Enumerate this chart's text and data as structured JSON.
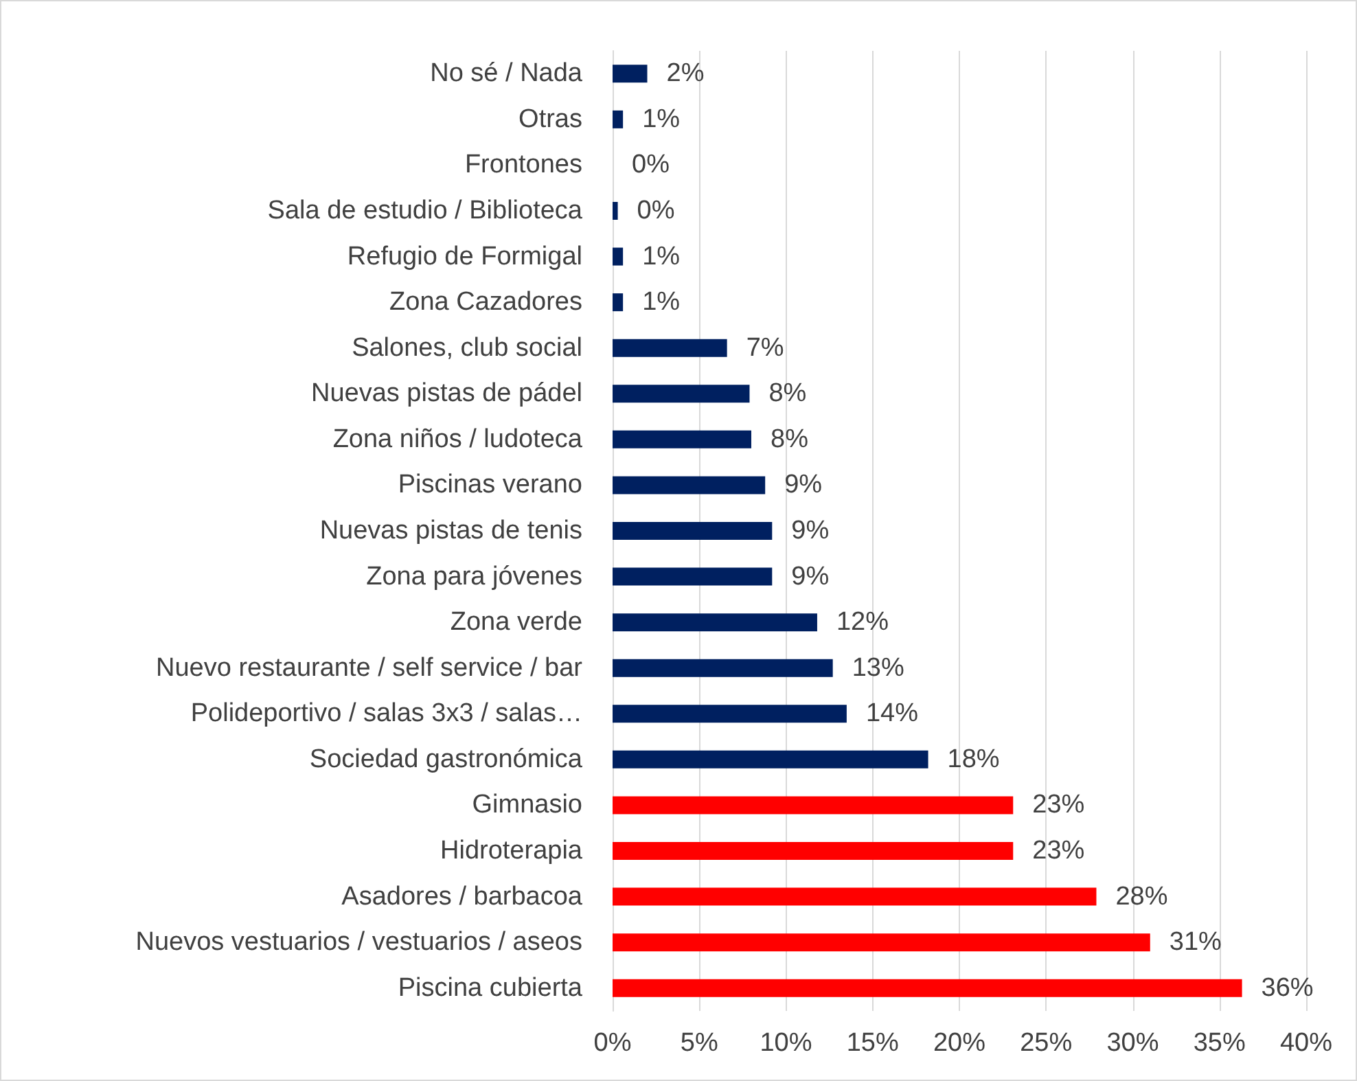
{
  "chart_data": {
    "type": "bar",
    "orientation": "horizontal",
    "categories": [
      "No sé / Nada",
      "Otras",
      "Frontones",
      "Sala de estudio / Biblioteca",
      "Refugio de Formigal",
      "Zona Cazadores",
      "Salones, club social",
      "Nuevas pistas de pádel",
      "Zona niños / ludoteca",
      "Piscinas verano",
      "Nuevas pistas de tenis",
      "Zona para jóvenes",
      "Zona verde",
      "Nuevo restaurante / self service / bar",
      "Polideportivo / salas 3x3 / salas…",
      "Sociedad gastronómica",
      "Gimnasio",
      "Hidroterapia",
      "Asadores / barbacoa",
      "Nuevos vestuarios / vestuarios / aseos",
      "Piscina cubierta"
    ],
    "values": [
      2.0,
      0.6,
      0,
      0.3,
      0.6,
      0.6,
      6.6,
      7.9,
      8.0,
      8.8,
      9.2,
      9.2,
      11.8,
      12.7,
      13.5,
      18.2,
      23.1,
      23.1,
      27.9,
      31.0,
      36.3
    ],
    "value_labels": [
      "2%",
      "1%",
      "0%",
      "0%",
      "1%",
      "1%",
      "7%",
      "8%",
      "8%",
      "9%",
      "9%",
      "9%",
      "12%",
      "13%",
      "14%",
      "18%",
      "23%",
      "23%",
      "28%",
      "31%",
      "36%"
    ],
    "colors": [
      "#002060",
      "#002060",
      "#002060",
      "#002060",
      "#002060",
      "#002060",
      "#002060",
      "#002060",
      "#002060",
      "#002060",
      "#002060",
      "#002060",
      "#002060",
      "#002060",
      "#002060",
      "#002060",
      "#ff0000",
      "#ff0000",
      "#ff0000",
      "#ff0000",
      "#ff0000"
    ],
    "xlim": [
      0,
      40
    ],
    "xticks": [
      {
        "value": 0,
        "label": "0%"
      },
      {
        "value": 5,
        "label": "5%"
      },
      {
        "value": 10,
        "label": "10%"
      },
      {
        "value": 15,
        "label": "15%"
      },
      {
        "value": 20,
        "label": "20%"
      },
      {
        "value": 25,
        "label": "25%"
      },
      {
        "value": 30,
        "label": "30%"
      },
      {
        "value": 35,
        "label": "35%"
      },
      {
        "value": 40,
        "label": "40%"
      }
    ],
    "grid": "x"
  }
}
